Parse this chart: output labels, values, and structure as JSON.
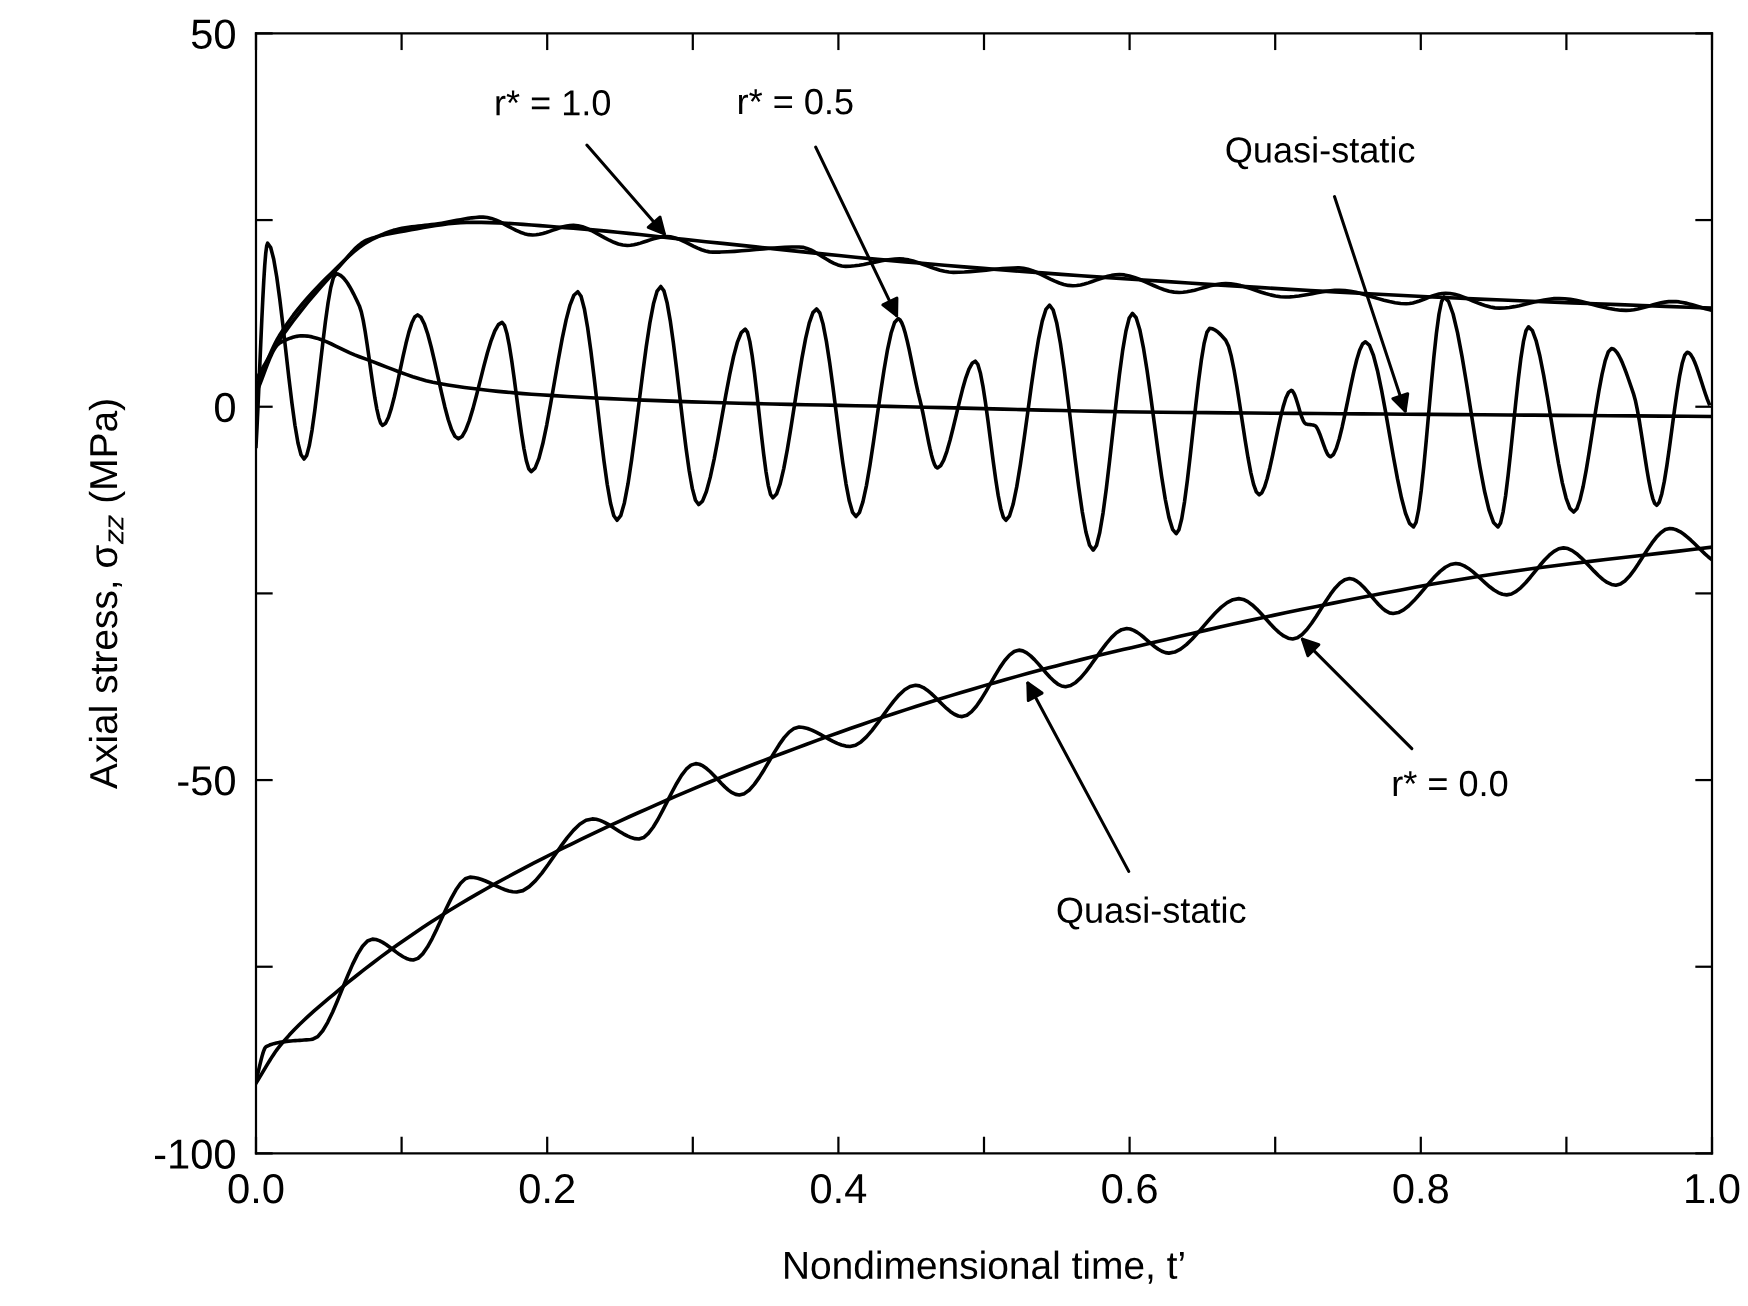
{
  "chart_data": {
    "type": "line",
    "xlabel": "Nondimensional time, t’",
    "ylabel": "Axial stress, σ$_{zz}$ (MPa)",
    "xlim": [
      0,
      1
    ],
    "ylim": [
      -100,
      50
    ],
    "xticks": [
      {
        "value": 0,
        "label": "0.0"
      },
      {
        "value": 0.1,
        "label": null
      },
      {
        "value": 0.2,
        "label": "0.2"
      },
      {
        "value": 0.3,
        "label": null
      },
      {
        "value": 0.4,
        "label": "0.4"
      },
      {
        "value": 0.5,
        "label": null
      },
      {
        "value": 0.6,
        "label": "0.6"
      },
      {
        "value": 0.7,
        "label": null
      },
      {
        "value": 0.8,
        "label": "0.8"
      },
      {
        "value": 0.9,
        "label": null
      },
      {
        "value": 1,
        "label": "1.0"
      }
    ],
    "yticks": [
      -100,
      {
        "value": -75,
        "label": null
      },
      -50,
      {
        "value": -25,
        "label": null
      },
      0,
      {
        "value": 25,
        "label": null
      },
      50
    ],
    "grid": false,
    "legend": false,
    "marker": "none",
    "line_style": "solid",
    "series": [
      {
        "color": "#000000",
        "x": [
          0,
          0.008,
          0.033,
          0.055,
          0.071,
          0.087,
          0.111,
          0.139,
          0.169,
          0.189,
          0.221,
          0.248,
          0.278,
          0.304,
          0.336,
          0.355,
          0.385,
          0.412,
          0.441,
          0.456,
          0.468,
          0.494,
          0.515,
          0.545,
          0.575,
          0.602,
          0.632,
          0.655,
          0.666,
          0.689,
          0.711,
          0.721,
          0.727,
          0.738,
          0.762,
          0.795,
          0.816,
          0.853,
          0.874,
          0.905,
          0.931,
          0.946,
          0.962,
          0.983,
          0.998
        ],
        "values": [
          -5.3,
          21.9,
          -7.0,
          17.8,
          13.5,
          -2.5,
          12.3,
          -4.3,
          11.3,
          -8.7,
          15.4,
          -15.2,
          16.1,
          -13.1,
          10.4,
          -12.2,
          13.1,
          -14.7,
          11.8,
          0.9,
          -8.2,
          6.1,
          -15.2,
          13.6,
          -19.2,
          12.5,
          -17.0,
          10.5,
          8.9,
          -11.8,
          2.2,
          -2.3,
          -2.5,
          -6.7,
          8.7,
          -16.1,
          14.7,
          -16.1,
          10.7,
          -14.1,
          7.8,
          1.8,
          -13.2,
          7.3,
          0.4
        ]
      },
      {
        "color": "#000000",
        "x": [
          0,
          0.016,
          0.032,
          0.071,
          0.126,
          0.195,
          0.309,
          0.446,
          0.607,
          0.79,
          1.0
        ],
        "values": [
          1.8,
          8.5,
          9.5,
          6.7,
          3.1,
          1.6,
          0.6,
          0,
          -0.7,
          -1.0,
          -1.3
        ]
      },
      {
        "color": "#000000",
        "x": [
          0,
          0.016,
          0.055,
          0.076,
          0.098,
          0.149,
          0.218,
          0.309,
          0.446,
          0.607,
          0.808,
          1.0
        ],
        "values": [
          3.6,
          8.9,
          18.3,
          22.3,
          23.4,
          24.7,
          23.9,
          22.1,
          19.4,
          17.0,
          14.7,
          13.2
        ]
      },
      {
        "color": "#000000",
        "x": [
          0,
          0.016,
          0.055,
          0.076,
          0.098,
          0.125,
          0.156,
          0.19,
          0.218,
          0.255,
          0.282,
          0.314,
          0.373,
          0.405,
          0.442,
          0.479,
          0.524,
          0.561,
          0.593,
          0.634,
          0.666,
          0.707,
          0.744,
          0.79,
          0.817,
          0.854,
          0.895,
          0.941,
          0.973,
          1.0
        ],
        "values": [
          2.5,
          9.5,
          18.5,
          22.0,
          23.8,
          24.5,
          25.4,
          23.0,
          24.3,
          21.6,
          22.8,
          20.7,
          21.4,
          18.8,
          19.8,
          18.0,
          18.6,
          16.2,
          17.7,
          15.3,
          16.5,
          14.7,
          15.6,
          13.8,
          15.2,
          13.2,
          14.5,
          12.9,
          14.1,
          12.9
        ]
      },
      {
        "color": "#000000",
        "x": [
          0,
          0.016,
          0.057,
          0.126,
          0.204,
          0.282,
          0.355,
          0.446,
          0.538,
          0.607,
          0.717,
          0.854,
          1.0
        ],
        "values": [
          -90.6,
          -85.7,
          -78.1,
          -68.3,
          -59.8,
          -52.7,
          -46.9,
          -40.6,
          -35.3,
          -32.0,
          -27.2,
          -22.3,
          -18.8
        ]
      },
      {
        "color": "#000000",
        "x": [
          0,
          0.007,
          0.021,
          0.039,
          0.08,
          0.108,
          0.147,
          0.179,
          0.231,
          0.263,
          0.302,
          0.332,
          0.373,
          0.408,
          0.453,
          0.485,
          0.524,
          0.556,
          0.598,
          0.627,
          0.675,
          0.712,
          0.751,
          0.781,
          0.824,
          0.859,
          0.898,
          0.934,
          0.971,
          1.0
        ],
        "values": [
          -90.2,
          -85.7,
          -85.0,
          -84.7,
          -71.3,
          -74.1,
          -63.0,
          -65.0,
          -55.2,
          -57.9,
          -47.8,
          -52.0,
          -42.9,
          -45.5,
          -37.3,
          -41.5,
          -32.6,
          -37.5,
          -29.7,
          -33.0,
          -25.7,
          -31.1,
          -23.0,
          -27.7,
          -21.0,
          -25.2,
          -18.9,
          -23.9,
          -16.3,
          -20.5
        ]
      }
    ],
    "annotations": [
      {
        "text": "r* = 1.0",
        "x": 0.282,
        "y": 22.8
      },
      {
        "text": "r* = 0.5",
        "x": 0.441,
        "y": 11.8
      },
      {
        "text": "Quasi-static",
        "x": 0.79,
        "y": -1.0
      },
      {
        "text": "Quasi-static",
        "x": 0.529,
        "y": -36.6
      },
      {
        "text": "r* = 0.0",
        "x": 0.717,
        "y": -30.8
      }
    ]
  }
}
